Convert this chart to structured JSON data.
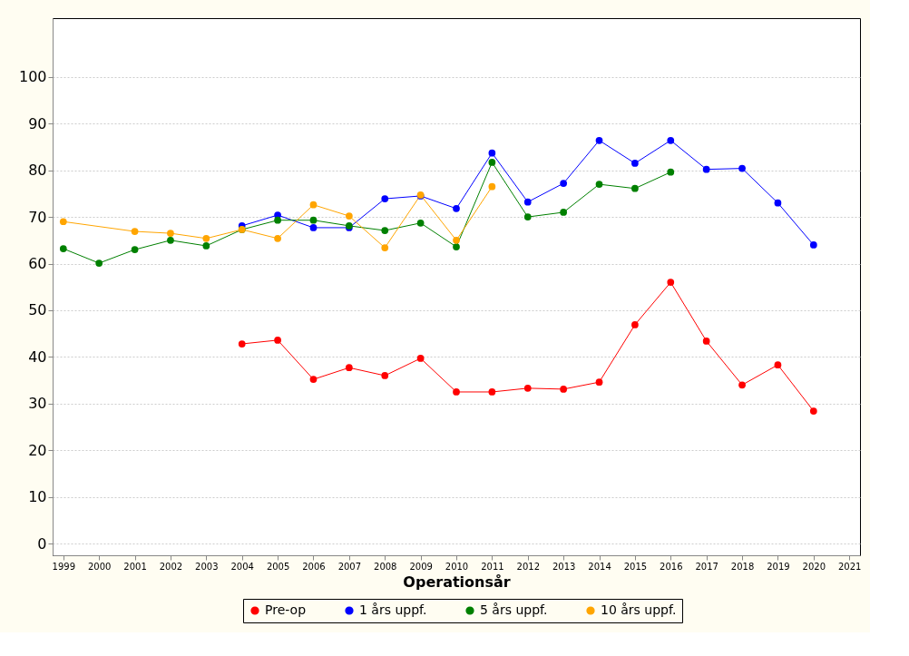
{
  "chart_data": {
    "type": "line",
    "xlabel": "Operationsår",
    "xlim": [
      1998.7,
      2021.3
    ],
    "xticks": [
      1999,
      2000,
      2001,
      2002,
      2003,
      2004,
      2005,
      2006,
      2007,
      2008,
      2009,
      2010,
      2011,
      2012,
      2013,
      2014,
      2015,
      2016,
      2017,
      2018,
      2019,
      2020,
      2021
    ],
    "ylim": [
      -2.5,
      112.6
    ],
    "yticks": [
      0,
      10,
      20,
      30,
      40,
      50,
      60,
      70,
      80,
      90,
      100
    ],
    "grid": "y",
    "legend": "bottom",
    "marker": "circle",
    "line_style": "solid",
    "series": [
      {
        "name": "Pre-op",
        "color": "#ff0000",
        "x": [
          2004,
          2005,
          2006,
          2007,
          2008,
          2009,
          2010,
          2011,
          2012,
          2013,
          2014,
          2015,
          2016,
          2017,
          2018,
          2019,
          2020
        ],
        "values": [
          42.8,
          43.6,
          35.2,
          37.7,
          36,
          39.7,
          32.5,
          32.5,
          33.3,
          33.1,
          34.6,
          46.9,
          56,
          43.4,
          34,
          38.3,
          28.4
        ]
      },
      {
        "name": "1 års uppf.",
        "color": "#0000ff",
        "x": [
          2004,
          2005,
          2006,
          2007,
          2008,
          2009,
          2010,
          2011,
          2012,
          2013,
          2014,
          2015,
          2016,
          2017,
          2018,
          2019,
          2020
        ],
        "values": [
          68.1,
          70.4,
          67.7,
          67.7,
          73.9,
          74.5,
          71.8,
          83.7,
          73.2,
          77.2,
          86.4,
          81.5,
          86.4,
          80.2,
          80.4,
          73,
          64
        ]
      },
      {
        "name": "5 års uppf.",
        "color": "#008000",
        "x": [
          1999,
          2000,
          2001,
          2002,
          2003,
          2004,
          2005,
          2006,
          2007,
          2008,
          2009,
          2010,
          2011,
          2012,
          2013,
          2014,
          2015,
          2016
        ],
        "values": [
          63.2,
          60.1,
          63,
          65,
          63.8,
          67.3,
          69.3,
          69.3,
          68.1,
          67.1,
          68.7,
          63.6,
          81.7,
          70,
          71,
          77,
          76.1,
          79.6
        ]
      },
      {
        "name": "10 års uppf.",
        "color": "#ffa500",
        "x": [
          1999,
          2001,
          2002,
          2003,
          2004,
          2005,
          2006,
          2007,
          2008,
          2009,
          2010,
          2011
        ],
        "values": [
          69,
          66.9,
          66.5,
          65.4,
          67.3,
          65.4,
          72.6,
          70.2,
          63.4,
          74.7,
          65,
          76.5
        ]
      }
    ]
  }
}
